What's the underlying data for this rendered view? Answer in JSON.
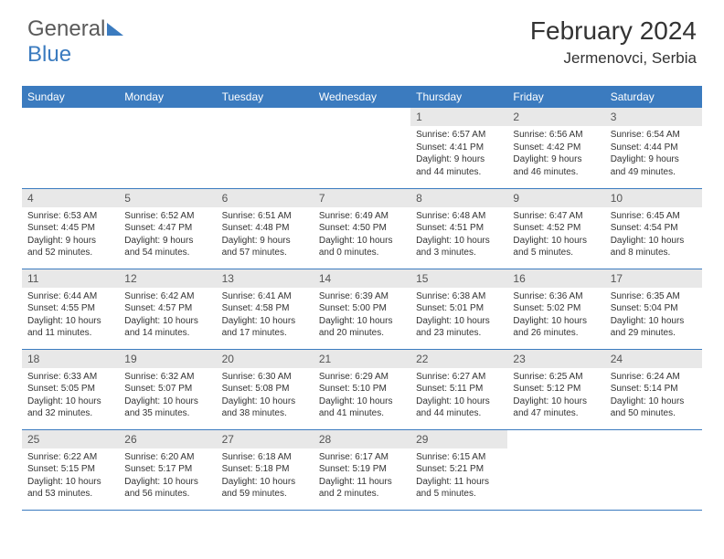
{
  "logo": {
    "gray": "General",
    "blue": "Blue"
  },
  "title": "February 2024",
  "location": "Jermenovci, Serbia",
  "headerColor": "#3b7bbf",
  "dayHeaders": [
    "Sunday",
    "Monday",
    "Tuesday",
    "Wednesday",
    "Thursday",
    "Friday",
    "Saturday"
  ],
  "weeks": [
    [
      null,
      null,
      null,
      null,
      {
        "n": "1",
        "r": "6:57 AM",
        "s": "4:41 PM",
        "d": "9 hours and 44 minutes."
      },
      {
        "n": "2",
        "r": "6:56 AM",
        "s": "4:42 PM",
        "d": "9 hours and 46 minutes."
      },
      {
        "n": "3",
        "r": "6:54 AM",
        "s": "4:44 PM",
        "d": "9 hours and 49 minutes."
      }
    ],
    [
      {
        "n": "4",
        "r": "6:53 AM",
        "s": "4:45 PM",
        "d": "9 hours and 52 minutes."
      },
      {
        "n": "5",
        "r": "6:52 AM",
        "s": "4:47 PM",
        "d": "9 hours and 54 minutes."
      },
      {
        "n": "6",
        "r": "6:51 AM",
        "s": "4:48 PM",
        "d": "9 hours and 57 minutes."
      },
      {
        "n": "7",
        "r": "6:49 AM",
        "s": "4:50 PM",
        "d": "10 hours and 0 minutes."
      },
      {
        "n": "8",
        "r": "6:48 AM",
        "s": "4:51 PM",
        "d": "10 hours and 3 minutes."
      },
      {
        "n": "9",
        "r": "6:47 AM",
        "s": "4:52 PM",
        "d": "10 hours and 5 minutes."
      },
      {
        "n": "10",
        "r": "6:45 AM",
        "s": "4:54 PM",
        "d": "10 hours and 8 minutes."
      }
    ],
    [
      {
        "n": "11",
        "r": "6:44 AM",
        "s": "4:55 PM",
        "d": "10 hours and 11 minutes."
      },
      {
        "n": "12",
        "r": "6:42 AM",
        "s": "4:57 PM",
        "d": "10 hours and 14 minutes."
      },
      {
        "n": "13",
        "r": "6:41 AM",
        "s": "4:58 PM",
        "d": "10 hours and 17 minutes."
      },
      {
        "n": "14",
        "r": "6:39 AM",
        "s": "5:00 PM",
        "d": "10 hours and 20 minutes."
      },
      {
        "n": "15",
        "r": "6:38 AM",
        "s": "5:01 PM",
        "d": "10 hours and 23 minutes."
      },
      {
        "n": "16",
        "r": "6:36 AM",
        "s": "5:02 PM",
        "d": "10 hours and 26 minutes."
      },
      {
        "n": "17",
        "r": "6:35 AM",
        "s": "5:04 PM",
        "d": "10 hours and 29 minutes."
      }
    ],
    [
      {
        "n": "18",
        "r": "6:33 AM",
        "s": "5:05 PM",
        "d": "10 hours and 32 minutes."
      },
      {
        "n": "19",
        "r": "6:32 AM",
        "s": "5:07 PM",
        "d": "10 hours and 35 minutes."
      },
      {
        "n": "20",
        "r": "6:30 AM",
        "s": "5:08 PM",
        "d": "10 hours and 38 minutes."
      },
      {
        "n": "21",
        "r": "6:29 AM",
        "s": "5:10 PM",
        "d": "10 hours and 41 minutes."
      },
      {
        "n": "22",
        "r": "6:27 AM",
        "s": "5:11 PM",
        "d": "10 hours and 44 minutes."
      },
      {
        "n": "23",
        "r": "6:25 AM",
        "s": "5:12 PM",
        "d": "10 hours and 47 minutes."
      },
      {
        "n": "24",
        "r": "6:24 AM",
        "s": "5:14 PM",
        "d": "10 hours and 50 minutes."
      }
    ],
    [
      {
        "n": "25",
        "r": "6:22 AM",
        "s": "5:15 PM",
        "d": "10 hours and 53 minutes."
      },
      {
        "n": "26",
        "r": "6:20 AM",
        "s": "5:17 PM",
        "d": "10 hours and 56 minutes."
      },
      {
        "n": "27",
        "r": "6:18 AM",
        "s": "5:18 PM",
        "d": "10 hours and 59 minutes."
      },
      {
        "n": "28",
        "r": "6:17 AM",
        "s": "5:19 PM",
        "d": "11 hours and 2 minutes."
      },
      {
        "n": "29",
        "r": "6:15 AM",
        "s": "5:21 PM",
        "d": "11 hours and 5 minutes."
      },
      null,
      null
    ]
  ],
  "labels": {
    "sunrise": "Sunrise: ",
    "sunset": "Sunset: ",
    "daylight": "Daylight: "
  }
}
